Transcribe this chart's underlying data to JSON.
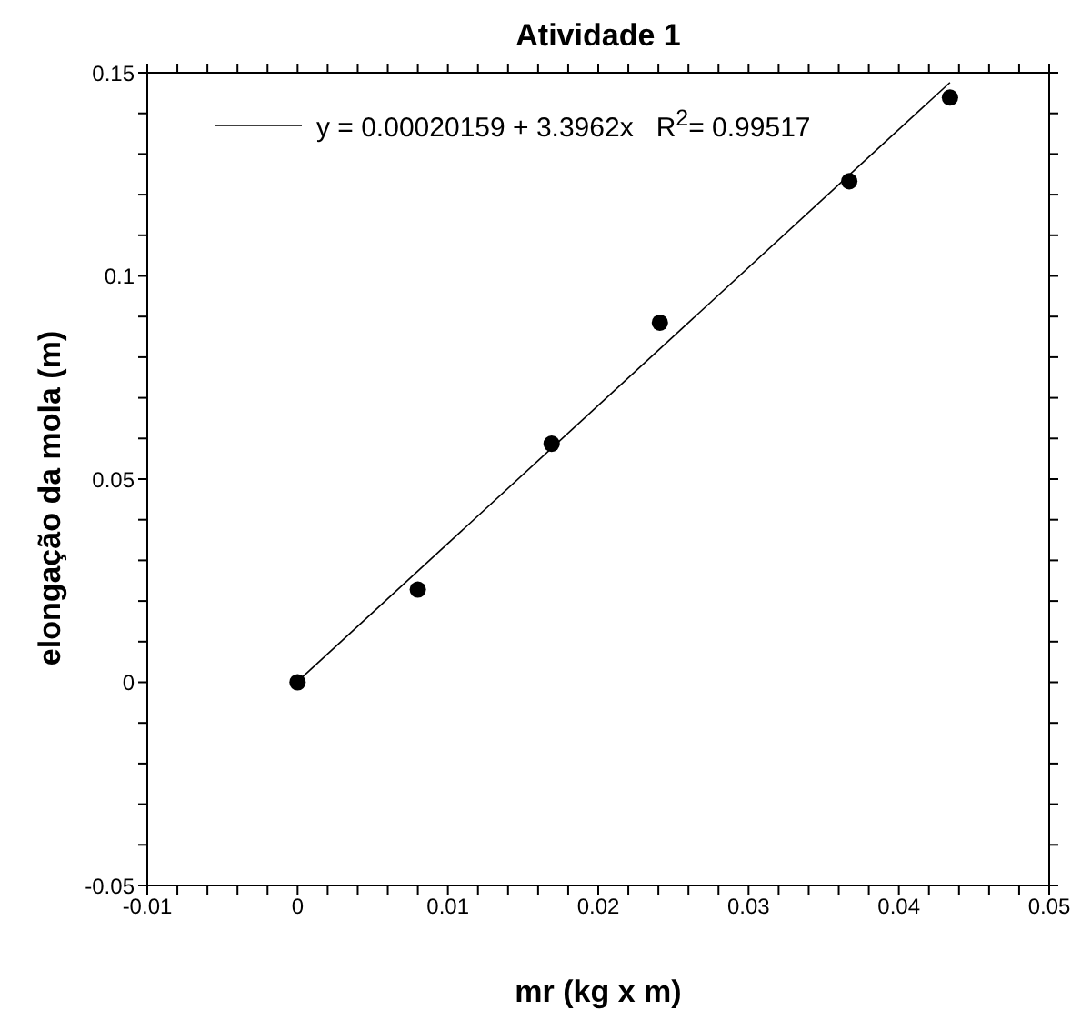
{
  "chart_data": {
    "type": "scatter",
    "title": "Atividade 1",
    "xlabel": "mr (kg x m)",
    "ylabel": "elongação da mola (m)",
    "xlim": [
      -0.01,
      0.05
    ],
    "ylim": [
      -0.05,
      0.15
    ],
    "xticks": [
      -0.01,
      {
        "value": -0.008,
        "label": null
      },
      {
        "value": -0.006,
        "label": null
      },
      {
        "value": -0.004,
        "label": null
      },
      {
        "value": -0.002,
        "label": null
      },
      0,
      {
        "value": 0.002,
        "label": null
      },
      {
        "value": 0.004,
        "label": null
      },
      {
        "value": 0.006,
        "label": null
      },
      {
        "value": 0.008,
        "label": null
      },
      0.01,
      {
        "value": 0.012,
        "label": null
      },
      {
        "value": 0.014,
        "label": null
      },
      {
        "value": 0.016,
        "label": null
      },
      {
        "value": 0.018,
        "label": null
      },
      0.02,
      {
        "value": 0.022,
        "label": null
      },
      {
        "value": 0.024,
        "label": null
      },
      {
        "value": 0.026,
        "label": null
      },
      {
        "value": 0.028,
        "label": null
      },
      0.03,
      {
        "value": 0.032,
        "label": null
      },
      {
        "value": 0.034,
        "label": null
      },
      {
        "value": 0.036,
        "label": null
      },
      {
        "value": 0.038,
        "label": null
      },
      0.04,
      {
        "value": 0.042,
        "label": null
      },
      {
        "value": 0.044,
        "label": null
      },
      {
        "value": 0.046,
        "label": null
      },
      {
        "value": 0.048,
        "label": null
      },
      0.05
    ],
    "yticks": [
      -0.05,
      {
        "value": -0.04,
        "label": null
      },
      {
        "value": -0.03,
        "label": null
      },
      {
        "value": -0.02,
        "label": null
      },
      {
        "value": -0.01,
        "label": null
      },
      0,
      {
        "value": 0.01,
        "label": null
      },
      {
        "value": 0.02,
        "label": null
      },
      {
        "value": 0.03,
        "label": null
      },
      {
        "value": 0.04,
        "label": null
      },
      0.05,
      {
        "value": 0.06,
        "label": null
      },
      {
        "value": 0.07,
        "label": null
      },
      {
        "value": 0.08,
        "label": null
      },
      {
        "value": 0.09,
        "label": null
      },
      0.1,
      {
        "value": 0.11,
        "label": null
      },
      {
        "value": 0.12,
        "label": null
      },
      {
        "value": 0.13,
        "label": null
      },
      {
        "value": 0.14,
        "label": null
      },
      0.15
    ],
    "grid": false,
    "legend": "top left",
    "series": [
      {
        "color": "#000000",
        "marker": "circle",
        "x": [
          0,
          0.008,
          0.0169,
          0.0241,
          0.0367,
          0.0434
        ],
        "values": [
          0,
          0.0228,
          0.0587,
          0.0885,
          0.1233,
          0.1439
        ]
      },
      {
        "type": "line",
        "name": "y = 0.00020159 + 3.3962x   R$^{2}$= 0.99517",
        "color": "#000000",
        "marker": "none",
        "line_style": "solid",
        "x": [
          0,
          0.0434
        ],
        "values": [
          0.0002,
          0.1476
        ]
      }
    ]
  }
}
